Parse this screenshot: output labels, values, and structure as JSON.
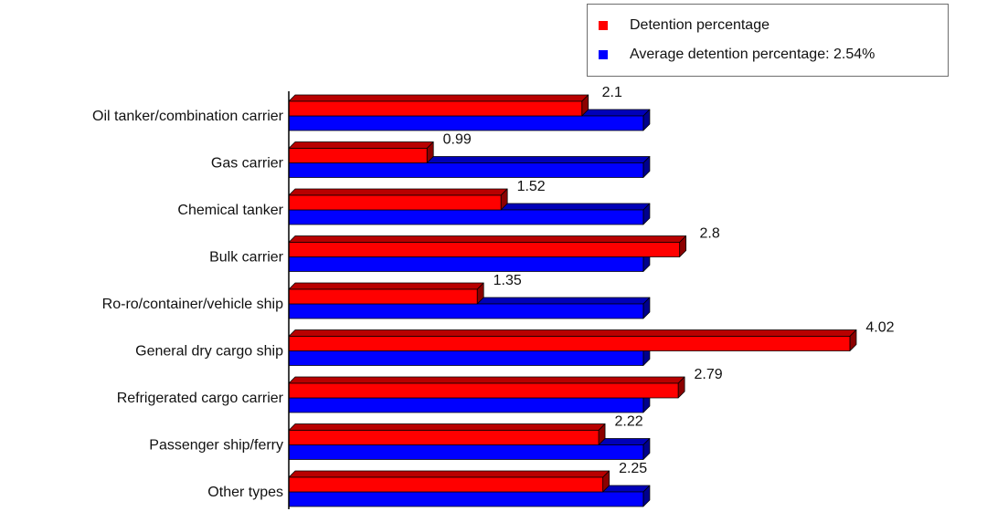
{
  "chart_data": {
    "type": "bar",
    "orientation": "horizontal",
    "categories": [
      "Oil tanker/combination carrier",
      "Gas carrier",
      "Chemical tanker",
      "Bulk carrier",
      "Ro-ro/container/vehicle ship",
      "General dry cargo ship",
      "Refrigerated cargo carrier",
      "Passenger ship/ferry",
      "Other types"
    ],
    "series": [
      {
        "name": "Detention percentage",
        "color": "#ff0000",
        "values": [
          2.1,
          0.99,
          1.52,
          2.8,
          1.35,
          4.02,
          2.79,
          2.22,
          2.25
        ],
        "labels": [
          "2.1",
          "0.99",
          "1.52",
          "2.8",
          "1.35",
          "4.02",
          "2.79",
          "2.22",
          "2.25"
        ]
      },
      {
        "name": "Average detention percentage: 2.54%",
        "color": "#0000ff",
        "values": [
          2.54,
          2.54,
          2.54,
          2.54,
          2.54,
          2.54,
          2.54,
          2.54,
          2.54
        ]
      }
    ],
    "xlim": [
      0,
      4.4
    ],
    "grid": false,
    "legend_position": "top-right",
    "style": "3d"
  }
}
